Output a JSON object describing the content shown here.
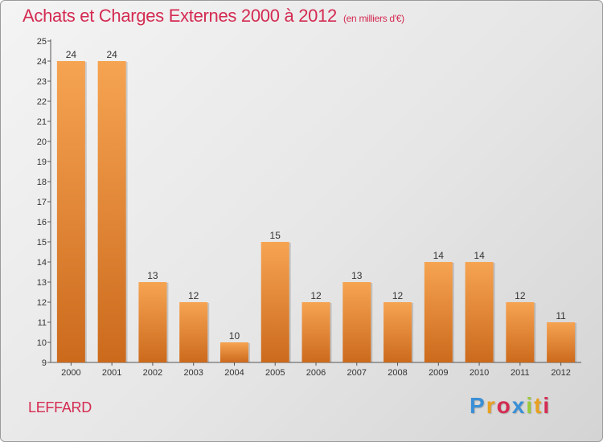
{
  "header": {
    "title": "Achats et Charges Externes 2000 à 2012",
    "subtitle": "(en milliers d'€)"
  },
  "footer": {
    "commune": "LEFFARD",
    "brand_letters": [
      "P",
      "r",
      "o",
      "x",
      "i",
      "t",
      "i"
    ]
  },
  "colors": {
    "title": "#d42b52",
    "bar_light": "#f6a452",
    "bar_dark": "#cc6a1c"
  },
  "chart_data": {
    "type": "bar",
    "title": "Achats et Charges Externes 2000 à 2012",
    "subtitle": "(en milliers d'€)",
    "xlabel": "",
    "ylabel": "",
    "categories": [
      "2000",
      "2001",
      "2002",
      "2003",
      "2004",
      "2005",
      "2006",
      "2007",
      "2008",
      "2009",
      "2010",
      "2011",
      "2012"
    ],
    "values": [
      24,
      24,
      13,
      12,
      10,
      15,
      12,
      13,
      12,
      14,
      14,
      12,
      11
    ],
    "ylim": [
      9,
      25
    ],
    "yticks": [
      9,
      10,
      11,
      12,
      13,
      14,
      15,
      16,
      17,
      18,
      19,
      20,
      21,
      22,
      23,
      24,
      25
    ],
    "grid": false,
    "data_labels": true,
    "legend": "none"
  }
}
